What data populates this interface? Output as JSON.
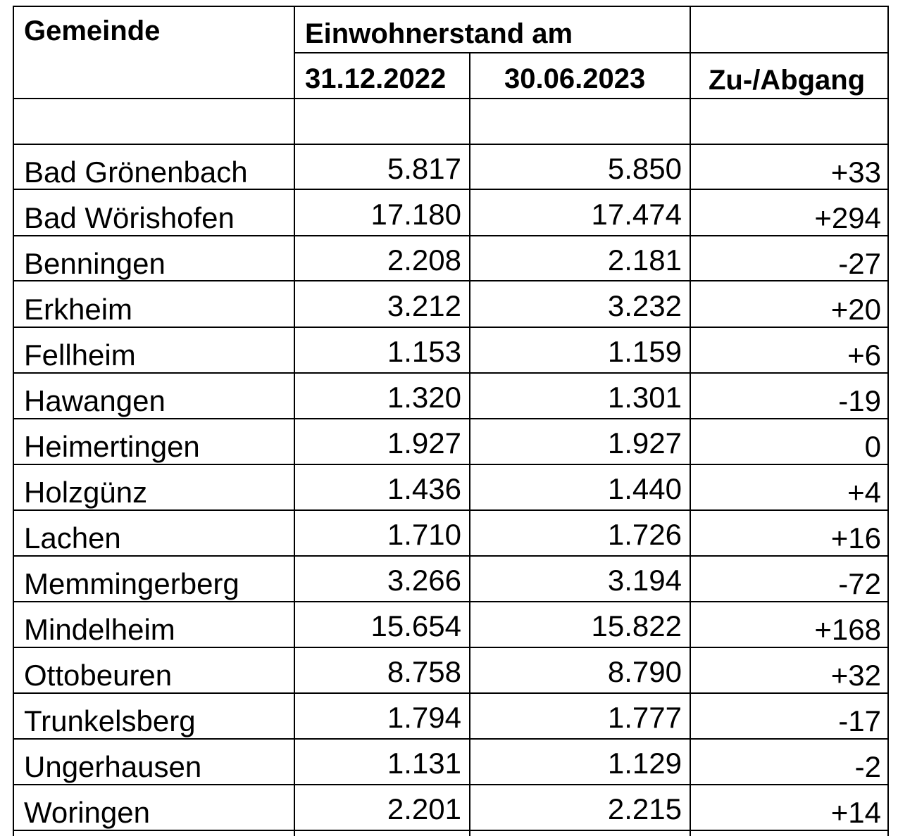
{
  "table": {
    "header": {
      "gemeinde": "Gemeinde",
      "einwohnerstand": "Einwohnerstand am",
      "date1": "31.12.2022",
      "date2": "30.06.2023",
      "change": "Zu-/Abgang"
    },
    "rows": [
      {
        "name": "Bad Grönenbach",
        "v2022": "5.817",
        "v2023": "5.850",
        "diff": "+33"
      },
      {
        "name": "Bad Wörishofen",
        "v2022": "17.180",
        "v2023": "17.474",
        "diff": "+294"
      },
      {
        "name": "Benningen",
        "v2022": "2.208",
        "v2023": "2.181",
        "diff": "-27"
      },
      {
        "name": "Erkheim",
        "v2022": "3.212",
        "v2023": "3.232",
        "diff": "+20"
      },
      {
        "name": "Fellheim",
        "v2022": "1.153",
        "v2023": "1.159",
        "diff": "+6"
      },
      {
        "name": "Hawangen",
        "v2022": "1.320",
        "v2023": "1.301",
        "diff": "-19"
      },
      {
        "name": "Heimertingen",
        "v2022": "1.927",
        "v2023": "1.927",
        "diff": "0"
      },
      {
        "name": "Holzgünz",
        "v2022": "1.436",
        "v2023": "1.440",
        "diff": "+4"
      },
      {
        "name": "Lachen",
        "v2022": "1.710",
        "v2023": "1.726",
        "diff": "+16"
      },
      {
        "name": "Memmingerberg",
        "v2022": "3.266",
        "v2023": "3.194",
        "diff": "-72"
      },
      {
        "name": "Mindelheim",
        "v2022": "15.654",
        "v2023": "15.822",
        "diff": "+168"
      },
      {
        "name": "Ottobeuren",
        "v2022": "8.758",
        "v2023": "8.790",
        "diff": "+32"
      },
      {
        "name": "Trunkelsberg",
        "v2022": "1.794",
        "v2023": "1.777",
        "diff": "-17"
      },
      {
        "name": "Ungerhausen",
        "v2022": "1.131",
        "v2023": "1.129",
        "diff": "-2"
      },
      {
        "name": "Woringen",
        "v2022": "2.201",
        "v2023": "2.215",
        "diff": "+14"
      }
    ]
  }
}
